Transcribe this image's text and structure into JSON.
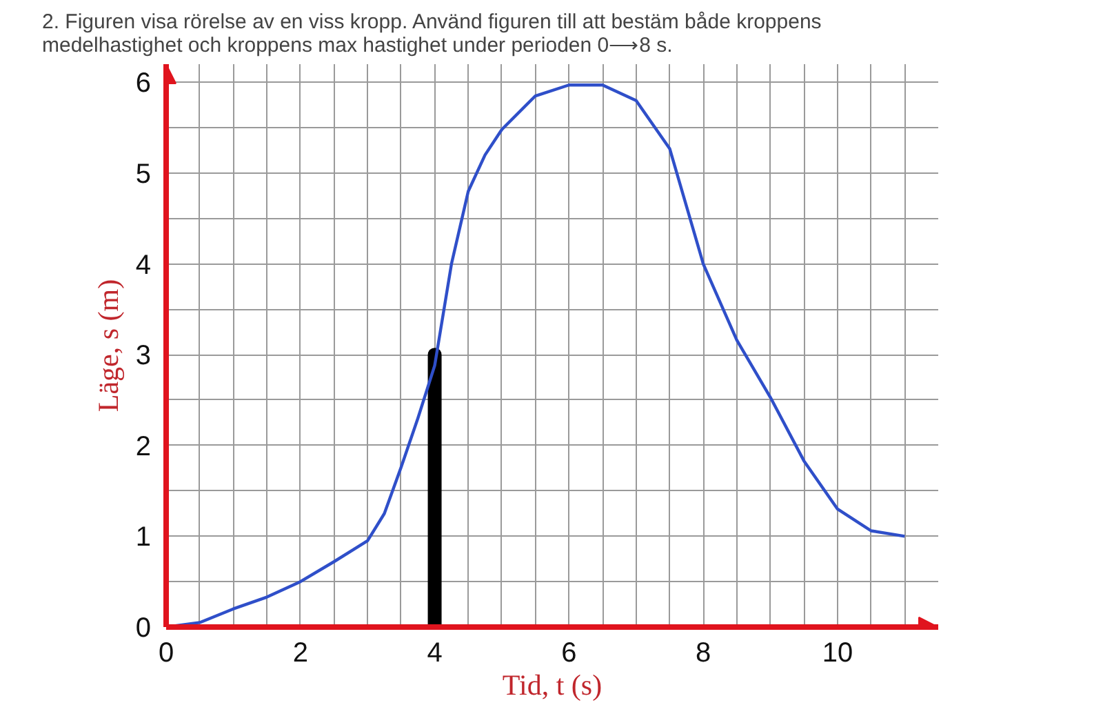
{
  "chart_data": {
    "type": "line",
    "title": "2.  Figuren visa rörelse av en viss kropp. Använd figuren till att bestäm både kroppens\n      medelhastighet och kroppens max hastighet under perioden 0⟶8 s.",
    "xlabel": "Tid, t (s)",
    "ylabel": "Läge, s (m)",
    "xlim": [
      0,
      11.5
    ],
    "ylim": [
      0,
      6.2
    ],
    "xticks": [
      0,
      {
        "value": 0.5,
        "label": null
      },
      2,
      {
        "value": 1,
        "label": null
      },
      {
        "value": 1.5,
        "label": null
      },
      {
        "value": 2.5,
        "label": null
      },
      {
        "value": 3,
        "label": null
      },
      {
        "value": 3.5,
        "label": null
      },
      4,
      {
        "value": 4.5,
        "label": null
      },
      {
        "value": 5,
        "label": null
      },
      {
        "value": 5.5,
        "label": null
      },
      6,
      {
        "value": 6.5,
        "label": null
      },
      {
        "value": 7,
        "label": null
      },
      {
        "value": 7.5,
        "label": null
      },
      8,
      {
        "value": 8.5,
        "label": null
      },
      {
        "value": 9,
        "label": null
      },
      {
        "value": 9.5,
        "label": null
      },
      10,
      {
        "value": 10.5,
        "label": null
      },
      {
        "value": 11,
        "label": null
      }
    ],
    "yticks": [
      0,
      {
        "value": 0.5,
        "label": null
      },
      1,
      {
        "value": 1.5,
        "label": null
      },
      2,
      {
        "value": 2.5,
        "label": null
      },
      3,
      {
        "value": 3.5,
        "label": null
      },
      4,
      {
        "value": 4.5,
        "label": null
      },
      5,
      {
        "value": 5.5,
        "label": null
      },
      6
    ],
    "grid": true,
    "series": [
      {
        "color": "#2f4fc9",
        "x": [
          0,
          0.5,
          1,
          1.5,
          2,
          2.5,
          3,
          3.25,
          3.5,
          3.75,
          4,
          4.25,
          4.5,
          4.75,
          5,
          5.5,
          6,
          6.5,
          7,
          7.5,
          8,
          8.5,
          9,
          9.5,
          10,
          10.5,
          11
        ],
        "values": [
          0,
          0.05,
          0.2,
          0.33,
          0.5,
          0.72,
          0.95,
          1.25,
          1.76,
          2.3,
          2.88,
          4.0,
          4.8,
          5.2,
          5.48,
          5.85,
          5.97,
          5.97,
          5.8,
          5.27,
          4.0,
          3.16,
          2.53,
          1.83,
          1.3,
          1.06,
          1.0
        ]
      },
      {
        "color": "#000000",
        "x": [
          4,
          4
        ],
        "values": [
          0,
          3
        ]
      }
    ]
  }
}
